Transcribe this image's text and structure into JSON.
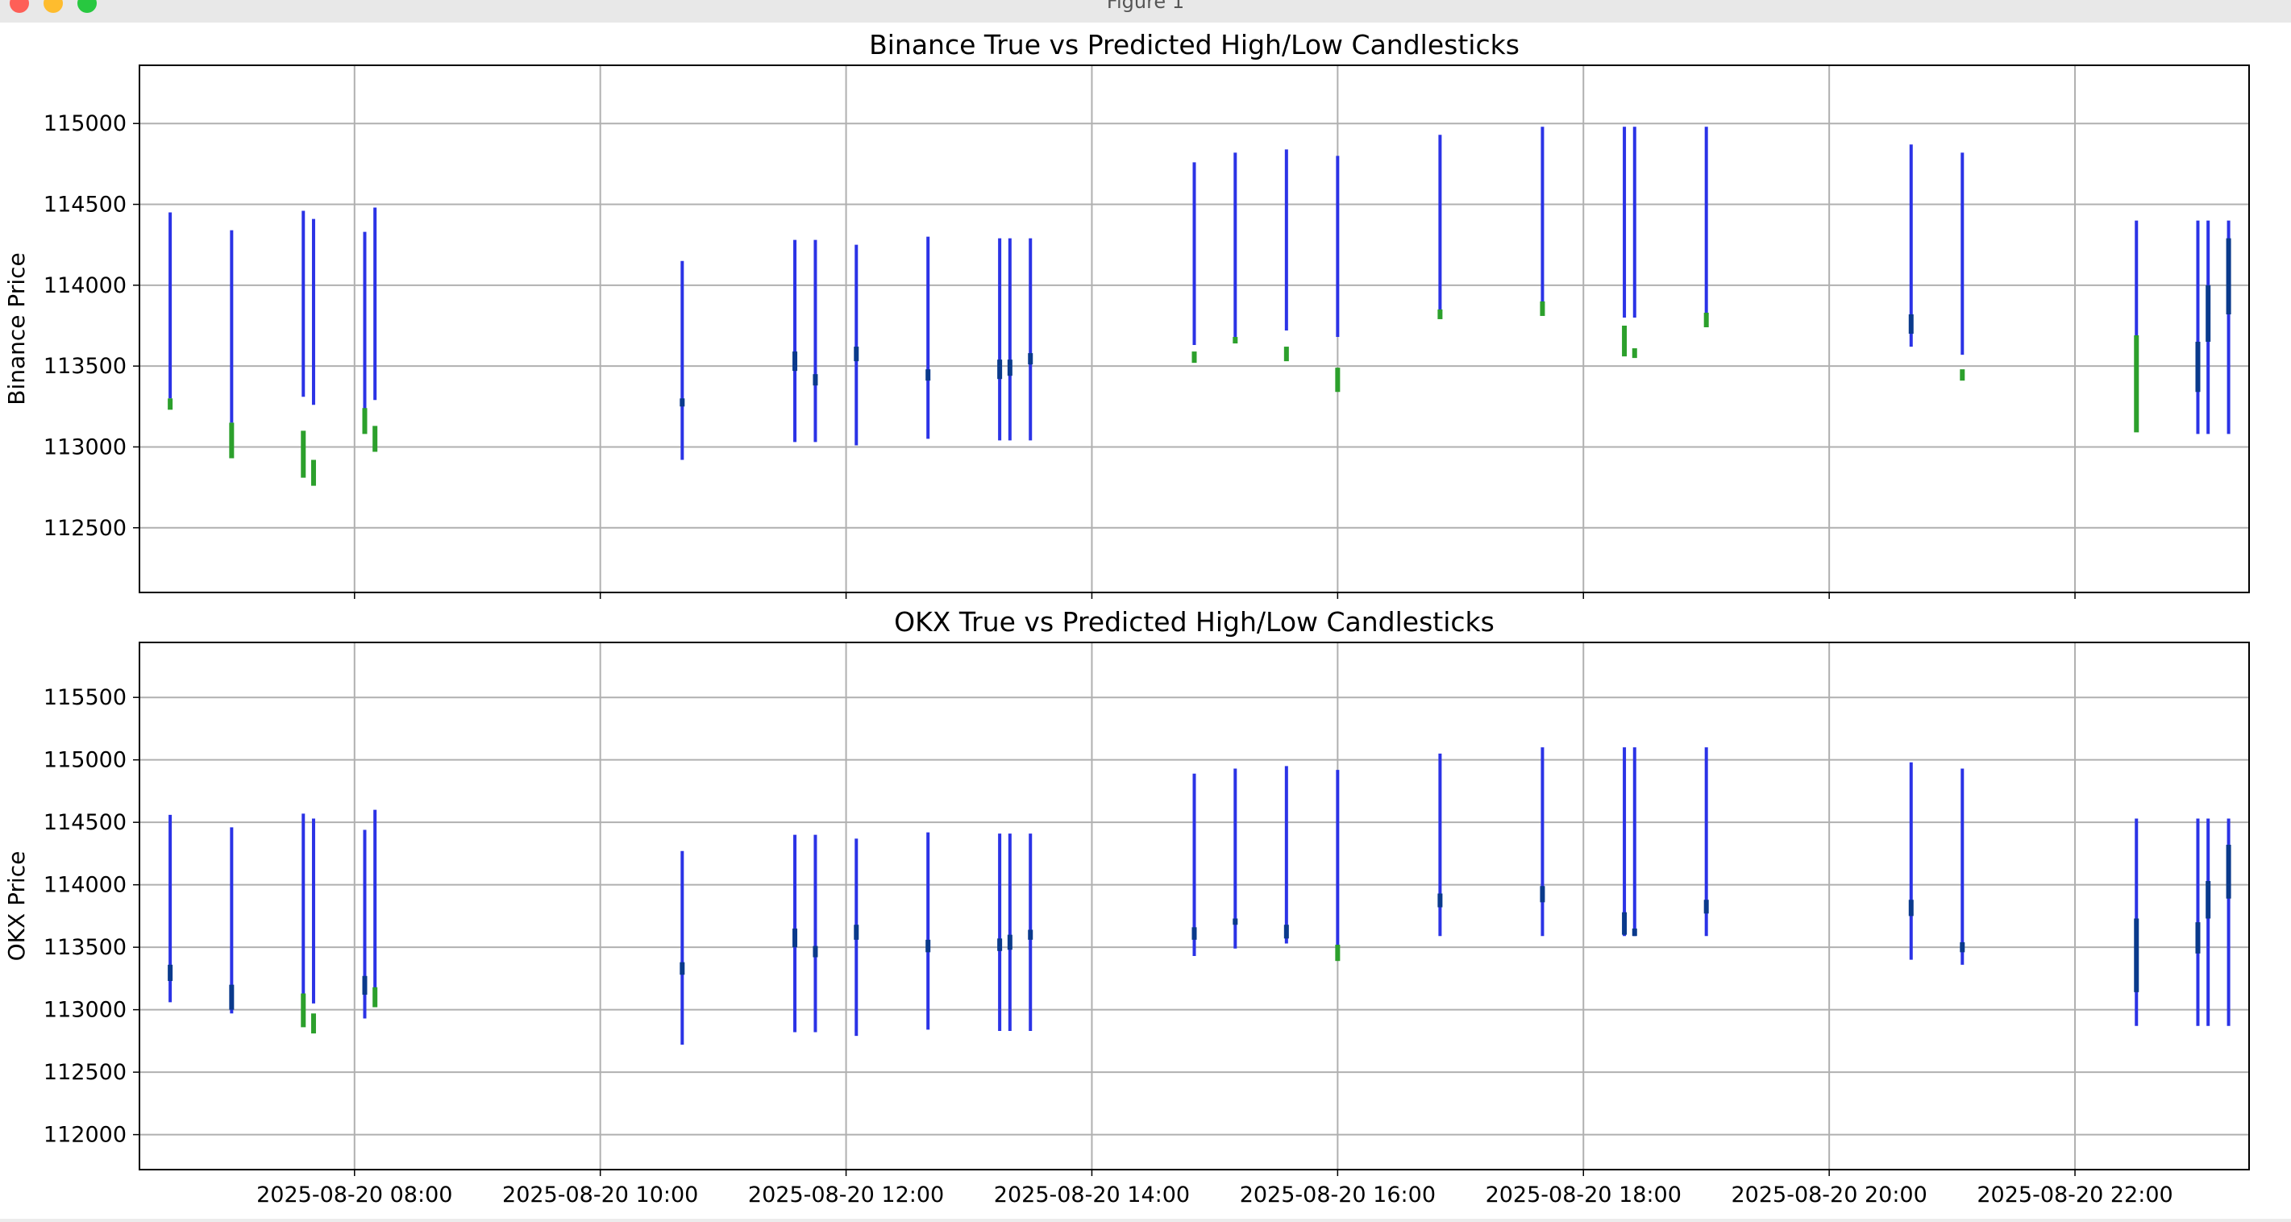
{
  "window": {
    "title": "Figure 1"
  },
  "colors": {
    "true": "#2b33e6",
    "predicted": "#2ca02c",
    "overlap": "#0a3a8c",
    "grid": "#b0b0b0"
  },
  "chart_data": [
    {
      "type": "candlestick",
      "title": "Binance True vs Predicted High/Low Candlesticks",
      "ylabel": "Binance Price",
      "xlabel": "",
      "ylim": [
        112100,
        115360
      ],
      "yticks": [
        112500,
        113000,
        113500,
        114000,
        114500,
        115000
      ],
      "grid": true,
      "series": [
        {
          "key": "true",
          "values": [
            {
              "t": "2025-08-20 06:30",
              "low": 113300,
              "high": 114450
            },
            {
              "t": "2025-08-20 07:00",
              "low": 113150,
              "high": 114340
            },
            {
              "t": "2025-08-20 07:35",
              "low": 113310,
              "high": 114460
            },
            {
              "t": "2025-08-20 07:40",
              "low": 113260,
              "high": 114410
            },
            {
              "t": "2025-08-20 08:05",
              "low": 113100,
              "high": 114330
            },
            {
              "t": "2025-08-20 08:10",
              "low": 113290,
              "high": 114480
            },
            {
              "t": "2025-08-20 10:40",
              "low": 112920,
              "high": 114150
            },
            {
              "t": "2025-08-20 11:35",
              "low": 113030,
              "high": 114280
            },
            {
              "t": "2025-08-20 11:45",
              "low": 113030,
              "high": 114280
            },
            {
              "t": "2025-08-20 12:05",
              "low": 113010,
              "high": 114250
            },
            {
              "t": "2025-08-20 12:40",
              "low": 113050,
              "high": 114300
            },
            {
              "t": "2025-08-20 13:15",
              "low": 113040,
              "high": 114290
            },
            {
              "t": "2025-08-20 13:20",
              "low": 113040,
              "high": 114290
            },
            {
              "t": "2025-08-20 13:30",
              "low": 113040,
              "high": 114290
            },
            {
              "t": "2025-08-20 14:50",
              "low": 113630,
              "high": 114760
            },
            {
              "t": "2025-08-20 15:10",
              "low": 113680,
              "high": 114820
            },
            {
              "t": "2025-08-20 15:35",
              "low": 113720,
              "high": 114840
            },
            {
              "t": "2025-08-20 16:00",
              "low": 113680,
              "high": 114800
            },
            {
              "t": "2025-08-20 16:50",
              "low": 113810,
              "high": 114930
            },
            {
              "t": "2025-08-20 17:40",
              "low": 113830,
              "high": 114980
            },
            {
              "t": "2025-08-20 18:20",
              "low": 113800,
              "high": 114980
            },
            {
              "t": "2025-08-20 18:25",
              "low": 113800,
              "high": 114980
            },
            {
              "t": "2025-08-20 19:00",
              "low": 113780,
              "high": 114980
            },
            {
              "t": "2025-08-20 20:40",
              "low": 113620,
              "high": 114870
            },
            {
              "t": "2025-08-20 21:05",
              "low": 113570,
              "high": 114820
            },
            {
              "t": "2025-08-20 22:30",
              "low": 113100,
              "high": 114400
            },
            {
              "t": "2025-08-20 23:00",
              "low": 113080,
              "high": 114400
            },
            {
              "t": "2025-08-20 23:05",
              "low": 113080,
              "high": 114400
            },
            {
              "t": "2025-08-20 23:15",
              "low": 113080,
              "high": 114400
            }
          ]
        },
        {
          "key": "predicted",
          "values": [
            {
              "t": "2025-08-20 06:30",
              "low": 113230,
              "high": 113300
            },
            {
              "t": "2025-08-20 07:00",
              "low": 112930,
              "high": 113150
            },
            {
              "t": "2025-08-20 07:35",
              "low": 112810,
              "high": 113100
            },
            {
              "t": "2025-08-20 07:40",
              "low": 112760,
              "high": 112920
            },
            {
              "t": "2025-08-20 08:05",
              "low": 113080,
              "high": 113240
            },
            {
              "t": "2025-08-20 08:10",
              "low": 112970,
              "high": 113130
            },
            {
              "t": "2025-08-20 10:40",
              "low": 113250,
              "high": 113300
            },
            {
              "t": "2025-08-20 11:35",
              "low": 113470,
              "high": 113590
            },
            {
              "t": "2025-08-20 11:45",
              "low": 113380,
              "high": 113450
            },
            {
              "t": "2025-08-20 12:05",
              "low": 113530,
              "high": 113620
            },
            {
              "t": "2025-08-20 12:40",
              "low": 113410,
              "high": 113480
            },
            {
              "t": "2025-08-20 13:15",
              "low": 113420,
              "high": 113540
            },
            {
              "t": "2025-08-20 13:20",
              "low": 113440,
              "high": 113540
            },
            {
              "t": "2025-08-20 13:30",
              "low": 113510,
              "high": 113580
            },
            {
              "t": "2025-08-20 14:50",
              "low": 113520,
              "high": 113590
            },
            {
              "t": "2025-08-20 15:10",
              "low": 113640,
              "high": 113680
            },
            {
              "t": "2025-08-20 15:35",
              "low": 113530,
              "high": 113620
            },
            {
              "t": "2025-08-20 16:00",
              "low": 113340,
              "high": 113490
            },
            {
              "t": "2025-08-20 16:50",
              "low": 113790,
              "high": 113850
            },
            {
              "t": "2025-08-20 17:40",
              "low": 113810,
              "high": 113900
            },
            {
              "t": "2025-08-20 18:20",
              "low": 113560,
              "high": 113750
            },
            {
              "t": "2025-08-20 18:25",
              "low": 113550,
              "high": 113610
            },
            {
              "t": "2025-08-20 19:00",
              "low": 113740,
              "high": 113830
            },
            {
              "t": "2025-08-20 20:40",
              "low": 113700,
              "high": 113820
            },
            {
              "t": "2025-08-20 21:05",
              "low": 113410,
              "high": 113480
            },
            {
              "t": "2025-08-20 22:30",
              "low": 113090,
              "high": 113690
            },
            {
              "t": "2025-08-20 23:00",
              "low": 113340,
              "high": 113650
            },
            {
              "t": "2025-08-20 23:05",
              "low": 113650,
              "high": 114000
            },
            {
              "t": "2025-08-20 23:15",
              "low": 113820,
              "high": 114290
            }
          ]
        }
      ]
    },
    {
      "type": "candlestick",
      "title": "OKX True vs Predicted High/Low Candlesticks",
      "ylabel": "OKX Price",
      "xlabel": "",
      "ylim": [
        111720,
        115940
      ],
      "yticks": [
        112000,
        112500,
        113000,
        113500,
        114000,
        114500,
        115000,
        115500
      ],
      "grid": true,
      "series": [
        {
          "key": "true",
          "values": [
            {
              "t": "2025-08-20 06:30",
              "low": 113060,
              "high": 114560
            },
            {
              "t": "2025-08-20 07:00",
              "low": 112970,
              "high": 114460
            },
            {
              "t": "2025-08-20 07:35",
              "low": 113050,
              "high": 114570
            },
            {
              "t": "2025-08-20 07:40",
              "low": 113050,
              "high": 114530
            },
            {
              "t": "2025-08-20 08:05",
              "low": 112930,
              "high": 114440
            },
            {
              "t": "2025-08-20 08:10",
              "low": 113080,
              "high": 114600
            },
            {
              "t": "2025-08-20 10:40",
              "low": 112720,
              "high": 114270
            },
            {
              "t": "2025-08-20 11:35",
              "low": 112820,
              "high": 114400
            },
            {
              "t": "2025-08-20 11:45",
              "low": 112820,
              "high": 114400
            },
            {
              "t": "2025-08-20 12:05",
              "low": 112790,
              "high": 114370
            },
            {
              "t": "2025-08-20 12:40",
              "low": 112840,
              "high": 114420
            },
            {
              "t": "2025-08-20 13:15",
              "low": 112830,
              "high": 114410
            },
            {
              "t": "2025-08-20 13:20",
              "low": 112830,
              "high": 114410
            },
            {
              "t": "2025-08-20 13:30",
              "low": 112830,
              "high": 114410
            },
            {
              "t": "2025-08-20 14:50",
              "low": 113430,
              "high": 114890
            },
            {
              "t": "2025-08-20 15:10",
              "low": 113490,
              "high": 114930
            },
            {
              "t": "2025-08-20 15:35",
              "low": 113530,
              "high": 114950
            },
            {
              "t": "2025-08-20 16:00",
              "low": 113480,
              "high": 114920
            },
            {
              "t": "2025-08-20 16:50",
              "low": 113590,
              "high": 115050
            },
            {
              "t": "2025-08-20 17:40",
              "low": 113590,
              "high": 115100
            },
            {
              "t": "2025-08-20 18:20",
              "low": 113590,
              "high": 115100
            },
            {
              "t": "2025-08-20 18:25",
              "low": 113590,
              "high": 115100
            },
            {
              "t": "2025-08-20 19:00",
              "low": 113590,
              "high": 115100
            },
            {
              "t": "2025-08-20 20:40",
              "low": 113400,
              "high": 114980
            },
            {
              "t": "2025-08-20 21:05",
              "low": 113360,
              "high": 114930
            },
            {
              "t": "2025-08-20 22:30",
              "low": 112870,
              "high": 114530
            },
            {
              "t": "2025-08-20 23:00",
              "low": 112870,
              "high": 114530
            },
            {
              "t": "2025-08-20 23:05",
              "low": 112870,
              "high": 114530
            },
            {
              "t": "2025-08-20 23:15",
              "low": 112870,
              "high": 114530
            }
          ]
        },
        {
          "key": "predicted",
          "values": [
            {
              "t": "2025-08-20 06:30",
              "low": 113230,
              "high": 113360
            },
            {
              "t": "2025-08-20 07:00",
              "low": 113000,
              "high": 113200
            },
            {
              "t": "2025-08-20 07:35",
              "low": 112860,
              "high": 113130
            },
            {
              "t": "2025-08-20 07:40",
              "low": 112810,
              "high": 112970
            },
            {
              "t": "2025-08-20 08:05",
              "low": 113120,
              "high": 113270
            },
            {
              "t": "2025-08-20 08:10",
              "low": 113020,
              "high": 113180
            },
            {
              "t": "2025-08-20 10:40",
              "low": 113280,
              "high": 113380
            },
            {
              "t": "2025-08-20 11:35",
              "low": 113500,
              "high": 113650
            },
            {
              "t": "2025-08-20 11:45",
              "low": 113420,
              "high": 113510
            },
            {
              "t": "2025-08-20 12:05",
              "low": 113560,
              "high": 113680
            },
            {
              "t": "2025-08-20 12:40",
              "low": 113460,
              "high": 113560
            },
            {
              "t": "2025-08-20 13:15",
              "low": 113470,
              "high": 113570
            },
            {
              "t": "2025-08-20 13:20",
              "low": 113480,
              "high": 113600
            },
            {
              "t": "2025-08-20 13:30",
              "low": 113560,
              "high": 113640
            },
            {
              "t": "2025-08-20 14:50",
              "low": 113560,
              "high": 113660
            },
            {
              "t": "2025-08-20 15:10",
              "low": 113680,
              "high": 113730
            },
            {
              "t": "2025-08-20 15:35",
              "low": 113570,
              "high": 113680
            },
            {
              "t": "2025-08-20 16:00",
              "low": 113390,
              "high": 113520
            },
            {
              "t": "2025-08-20 16:50",
              "low": 113820,
              "high": 113930
            },
            {
              "t": "2025-08-20 17:40",
              "low": 113860,
              "high": 113990
            },
            {
              "t": "2025-08-20 18:20",
              "low": 113600,
              "high": 113780
            },
            {
              "t": "2025-08-20 18:25",
              "low": 113590,
              "high": 113650
            },
            {
              "t": "2025-08-20 19:00",
              "low": 113770,
              "high": 113880
            },
            {
              "t": "2025-08-20 20:40",
              "low": 113750,
              "high": 113880
            },
            {
              "t": "2025-08-20 21:05",
              "low": 113460,
              "high": 113540
            },
            {
              "t": "2025-08-20 22:30",
              "low": 113140,
              "high": 113730
            },
            {
              "t": "2025-08-20 23:00",
              "low": 113450,
              "high": 113700
            },
            {
              "t": "2025-08-20 23:05",
              "low": 113730,
              "high": 114030
            },
            {
              "t": "2025-08-20 23:15",
              "low": 113890,
              "high": 114320
            }
          ]
        }
      ]
    }
  ],
  "x_axis": {
    "range": [
      "2025-08-20 06:15",
      "2025-08-20 23:25"
    ],
    "ticks": [
      "2025-08-20 08:00",
      "2025-08-20 10:00",
      "2025-08-20 12:00",
      "2025-08-20 14:00",
      "2025-08-20 16:00",
      "2025-08-20 18:00",
      "2025-08-20 20:00",
      "2025-08-20 22:00"
    ]
  }
}
